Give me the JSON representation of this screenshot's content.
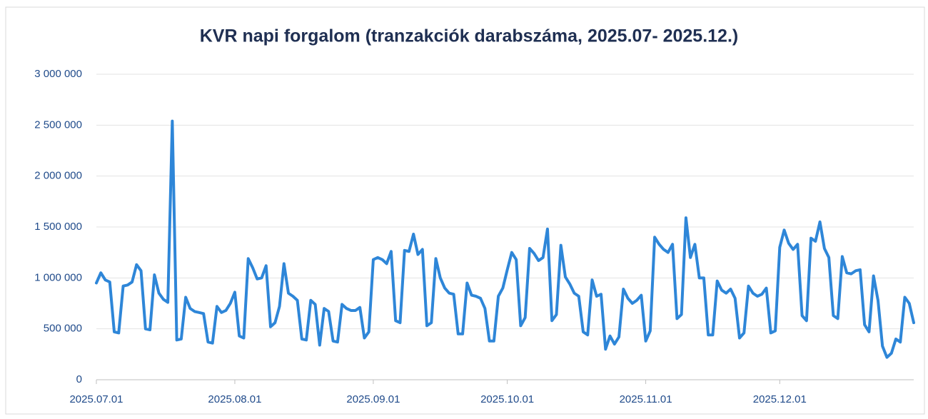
{
  "chart_data": {
    "type": "line",
    "title": "KVR napi forgalom (tranzakciók darabszáma, 2025.07- 2025.12.)",
    "color": "#2e86d8",
    "grid": true,
    "ylim": [
      0,
      3000000
    ],
    "yticks": [
      0,
      {
        "value": 500000,
        "label": "500 000"
      },
      {
        "value": 1000000,
        "label": "1 000 000"
      },
      {
        "value": 1500000,
        "label": "1 500 000"
      },
      {
        "value": 2000000,
        "label": "2 000 000"
      },
      {
        "value": 2500000,
        "label": "2 500 000"
      },
      {
        "value": 3000000,
        "label": "3 000 000"
      }
    ],
    "xticks": [
      "2025.07.01",
      "2025.08.01",
      "2025.09.01",
      "2025.10.01",
      "2025.11.01",
      "2025.12.01"
    ],
    "x": [
      "2025.07.01",
      "2025.07.02",
      "2025.07.03",
      "2025.07.04",
      "2025.07.05",
      "2025.07.06",
      "2025.07.07",
      "2025.07.08",
      "2025.07.09",
      "2025.07.10",
      "2025.07.11",
      "2025.07.12",
      "2025.07.13",
      "2025.07.14",
      "2025.07.15",
      "2025.07.16",
      "2025.07.17",
      "2025.07.18",
      "2025.07.19",
      "2025.07.20",
      "2025.07.21",
      "2025.07.22",
      "2025.07.23",
      "2025.07.24",
      "2025.07.25",
      "2025.07.26",
      "2025.07.27",
      "2025.07.28",
      "2025.07.29",
      "2025.07.30",
      "2025.07.31",
      "2025.08.01",
      "2025.08.02",
      "2025.08.03",
      "2025.08.04",
      "2025.08.05",
      "2025.08.06",
      "2025.08.07",
      "2025.08.08",
      "2025.08.09",
      "2025.08.10",
      "2025.08.11",
      "2025.08.12",
      "2025.08.13",
      "2025.08.14",
      "2025.08.15",
      "2025.08.16",
      "2025.08.17",
      "2025.08.18",
      "2025.08.19",
      "2025.08.20",
      "2025.08.21",
      "2025.08.22",
      "2025.08.23",
      "2025.08.24",
      "2025.08.25",
      "2025.08.26",
      "2025.08.27",
      "2025.08.28",
      "2025.08.29",
      "2025.08.30",
      "2025.08.31",
      "2025.09.01",
      "2025.09.02",
      "2025.09.03",
      "2025.09.04",
      "2025.09.05",
      "2025.09.06",
      "2025.09.07",
      "2025.09.08",
      "2025.09.09",
      "2025.09.10",
      "2025.09.11",
      "2025.09.12",
      "2025.09.13",
      "2025.09.14",
      "2025.09.15",
      "2025.09.16",
      "2025.09.17",
      "2025.09.18",
      "2025.09.19",
      "2025.09.20",
      "2025.09.21",
      "2025.09.22",
      "2025.09.23",
      "2025.09.24",
      "2025.09.25",
      "2025.09.26",
      "2025.09.27",
      "2025.09.28",
      "2025.09.29",
      "2025.09.30",
      "2025.10.01",
      "2025.10.02",
      "2025.10.03",
      "2025.10.04",
      "2025.10.05",
      "2025.10.06",
      "2025.10.07",
      "2025.10.08",
      "2025.10.09",
      "2025.10.10",
      "2025.10.11",
      "2025.10.12",
      "2025.10.13",
      "2025.10.14",
      "2025.10.15",
      "2025.10.16",
      "2025.10.17",
      "2025.10.18",
      "2025.10.19",
      "2025.10.20",
      "2025.10.21",
      "2025.10.22",
      "2025.10.23",
      "2025.10.24",
      "2025.10.25",
      "2025.10.26",
      "2025.10.27",
      "2025.10.28",
      "2025.10.29",
      "2025.10.30",
      "2025.10.31",
      "2025.11.01",
      "2025.11.02",
      "2025.11.03",
      "2025.11.04",
      "2025.11.05",
      "2025.11.06",
      "2025.11.07",
      "2025.11.08",
      "2025.11.09",
      "2025.11.10",
      "2025.11.11",
      "2025.11.12",
      "2025.11.13",
      "2025.11.14",
      "2025.11.15",
      "2025.11.16",
      "2025.11.17",
      "2025.11.18",
      "2025.11.19",
      "2025.11.20",
      "2025.11.21",
      "2025.11.22",
      "2025.11.23",
      "2025.11.24",
      "2025.11.25",
      "2025.11.26",
      "2025.11.27",
      "2025.11.28",
      "2025.11.29",
      "2025.11.30",
      "2025.12.01",
      "2025.12.02",
      "2025.12.03",
      "2025.12.04",
      "2025.12.05",
      "2025.12.06",
      "2025.12.07",
      "2025.12.08",
      "2025.12.09",
      "2025.12.10",
      "2025.12.11",
      "2025.12.12",
      "2025.12.13",
      "2025.12.14",
      "2025.12.15",
      "2025.12.16",
      "2025.12.17",
      "2025.12.18",
      "2025.12.19",
      "2025.12.20",
      "2025.12.21",
      "2025.12.22",
      "2025.12.23",
      "2025.12.24",
      "2025.12.25",
      "2025.12.26",
      "2025.12.27",
      "2025.12.28",
      "2025.12.29",
      "2025.12.30",
      "2025.12.31"
    ],
    "values": [
      950000,
      1050000,
      980000,
      960000,
      470000,
      460000,
      920000,
      930000,
      960000,
      1130000,
      1070000,
      500000,
      490000,
      1030000,
      850000,
      790000,
      760000,
      2540000,
      390000,
      400000,
      810000,
      700000,
      670000,
      660000,
      650000,
      370000,
      360000,
      720000,
      660000,
      680000,
      750000,
      860000,
      430000,
      410000,
      1190000,
      1100000,
      990000,
      1000000,
      1120000,
      520000,
      560000,
      720000,
      1140000,
      850000,
      820000,
      780000,
      400000,
      390000,
      780000,
      740000,
      340000,
      700000,
      670000,
      380000,
      370000,
      740000,
      700000,
      680000,
      680000,
      710000,
      410000,
      470000,
      1180000,
      1200000,
      1180000,
      1140000,
      1260000,
      580000,
      560000,
      1270000,
      1260000,
      1430000,
      1230000,
      1280000,
      530000,
      560000,
      1190000,
      1000000,
      900000,
      850000,
      840000,
      450000,
      450000,
      950000,
      830000,
      820000,
      800000,
      700000,
      380000,
      380000,
      820000,
      900000,
      1080000,
      1250000,
      1180000,
      530000,
      610000,
      1290000,
      1240000,
      1170000,
      1200000,
      1480000,
      580000,
      640000,
      1320000,
      1010000,
      940000,
      850000,
      820000,
      470000,
      440000,
      980000,
      820000,
      840000,
      300000,
      430000,
      350000,
      420000,
      890000,
      800000,
      750000,
      780000,
      830000,
      380000,
      480000,
      1400000,
      1330000,
      1280000,
      1250000,
      1330000,
      600000,
      640000,
      1590000,
      1200000,
      1330000,
      1000000,
      1000000,
      440000,
      440000,
      970000,
      880000,
      850000,
      890000,
      800000,
      410000,
      460000,
      920000,
      850000,
      820000,
      840000,
      900000,
      460000,
      480000,
      1300000,
      1470000,
      1340000,
      1280000,
      1330000,
      630000,
      580000,
      1390000,
      1360000,
      1550000,
      1290000,
      1200000,
      630000,
      600000,
      1210000,
      1050000,
      1040000,
      1070000,
      1080000,
      540000,
      470000,
      1020000,
      780000,
      330000,
      220000,
      260000,
      400000,
      370000,
      810000,
      750000,
      560000
    ]
  }
}
